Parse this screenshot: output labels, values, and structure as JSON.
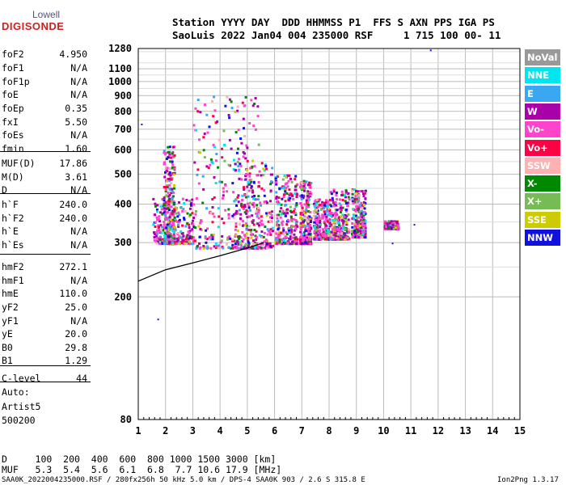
{
  "logo": {
    "brand": "Lowell",
    "product": "DIGISONDE"
  },
  "header": {
    "line1": "Station YYYY DAY  DDD HHMMSS P1  FFS S AXN PPS IGA PS",
    "line2": "SaoLuis 2022 Jan04 004 235000 RSF     1 715 100 00- 11"
  },
  "params": [
    {
      "name": "foF2",
      "value": "4.950"
    },
    {
      "name": "foF1",
      "value": "N/A"
    },
    {
      "name": "foF1p",
      "value": "N/A"
    },
    {
      "name": "foE",
      "value": "N/A"
    },
    {
      "name": "foEp",
      "value": "0.35"
    },
    {
      "name": "fxI",
      "value": "5.50"
    },
    {
      "name": "foEs",
      "value": "N/A"
    },
    {
      "name": "fmin",
      "value": "1.60"
    },
    {
      "name": "MUF(D)",
      "value": "17.86"
    },
    {
      "name": "M(D)",
      "value": "3.61"
    },
    {
      "name": "D",
      "value": "N/A"
    },
    {
      "name": "h`F",
      "value": "240.0"
    },
    {
      "name": "h`F2",
      "value": "240.0"
    },
    {
      "name": "h`E",
      "value": "N/A"
    },
    {
      "name": "h`Es",
      "value": "N/A"
    },
    {
      "name": "hmF2",
      "value": "272.1"
    },
    {
      "name": "hmF1",
      "value": "N/A"
    },
    {
      "name": "hmE",
      "value": "110.0"
    },
    {
      "name": "yF2",
      "value": "25.0"
    },
    {
      "name": "yF1",
      "value": "N/A"
    },
    {
      "name": "yE",
      "value": "20.0"
    },
    {
      "name": "B0",
      "value": "29.8"
    },
    {
      "name": "B1",
      "value": "1.29"
    },
    {
      "name": "C-level",
      "value": "44"
    }
  ],
  "auto": {
    "line1": "Auto:",
    "line2": "Artist5",
    "line3": "500200"
  },
  "legend": [
    {
      "label": "NoVal",
      "bg": "#999999",
      "fg": "#ffffff"
    },
    {
      "label": "NNE",
      "bg": "#00e5ee",
      "fg": "#ffffff"
    },
    {
      "label": "E",
      "bg": "#3aa8f0",
      "fg": "#ffffff"
    },
    {
      "label": "W",
      "bg": "#aa00aa",
      "fg": "#ffffff"
    },
    {
      "label": "Vo-",
      "bg": "#ff44cc",
      "fg": "#ffffff"
    },
    {
      "label": "Vo+",
      "bg": "#ff0044",
      "fg": "#ffffff"
    },
    {
      "label": "SSW",
      "bg": "#ffb0b0",
      "fg": "#ffffff"
    },
    {
      "label": "X-",
      "bg": "#008800",
      "fg": "#ffffff"
    },
    {
      "label": "X+",
      "bg": "#77bb55",
      "fg": "#ffffff"
    },
    {
      "label": "SSE",
      "bg": "#cccc00",
      "fg": "#ffffff"
    },
    {
      "label": "NNW",
      "bg": "#1111dd",
      "fg": "#ffffff"
    }
  ],
  "bottom": {
    "line1": "D     100  200  400  600  800 1000 1500 3000 [km]",
    "line2": "MUF   5.3  5.4  5.6  6.1  6.8  7.7 10.6 17.9 [MHz]"
  },
  "footer": {
    "left": "SAA0K_2022004235000.RSF / 280fx256h 50 kHz 5.0 km / DPS-4 SAA0K 903 / 2.6 S 315.8 E",
    "right": "Ion2Png 1.3.17"
  },
  "chart_data": {
    "type": "scatter",
    "xlim": [
      1,
      15
    ],
    "ylim": [
      80,
      1280
    ],
    "y_scale": "log",
    "grid": true,
    "legend_placement": "right",
    "xticks": [
      "1",
      "2",
      "3",
      "4",
      "5",
      "6",
      "7",
      "8",
      "9",
      "10",
      "11",
      "12",
      "13",
      "14",
      "15"
    ],
    "yticks": [
      80,
      200,
      300,
      400,
      500,
      600,
      700,
      800,
      900,
      1000,
      1100,
      1280
    ],
    "trace_clusters": [
      {
        "x": [
          1.5,
          3.0
        ],
        "y": [
          300,
          420
        ]
      },
      {
        "x": [
          1.9,
          2.3
        ],
        "y": [
          300,
          620
        ]
      },
      {
        "x": [
          3.0,
          5.4
        ],
        "y": [
          290,
          900
        ]
      },
      {
        "x": [
          4.4,
          5.9
        ],
        "y": [
          290,
          560
        ]
      },
      {
        "x": [
          6.0,
          6.8
        ],
        "y": [
          300,
          500
        ]
      },
      {
        "x": [
          6.9,
          7.3
        ],
        "y": [
          300,
          480
        ]
      },
      {
        "x": [
          7.4,
          8.0
        ],
        "y": [
          310,
          420
        ]
      },
      {
        "x": [
          8.0,
          8.7
        ],
        "y": [
          310,
          450
        ]
      },
      {
        "x": [
          8.8,
          9.3
        ],
        "y": [
          315,
          450
        ]
      },
      {
        "x": [
          10.0,
          10.5
        ],
        "y": [
          335,
          355
        ]
      }
    ],
    "profile_curve": {
      "x": [
        1,
        2,
        3,
        4,
        5,
        5.6
      ],
      "y": [
        225,
        245,
        258,
        272,
        288,
        300
      ]
    }
  }
}
